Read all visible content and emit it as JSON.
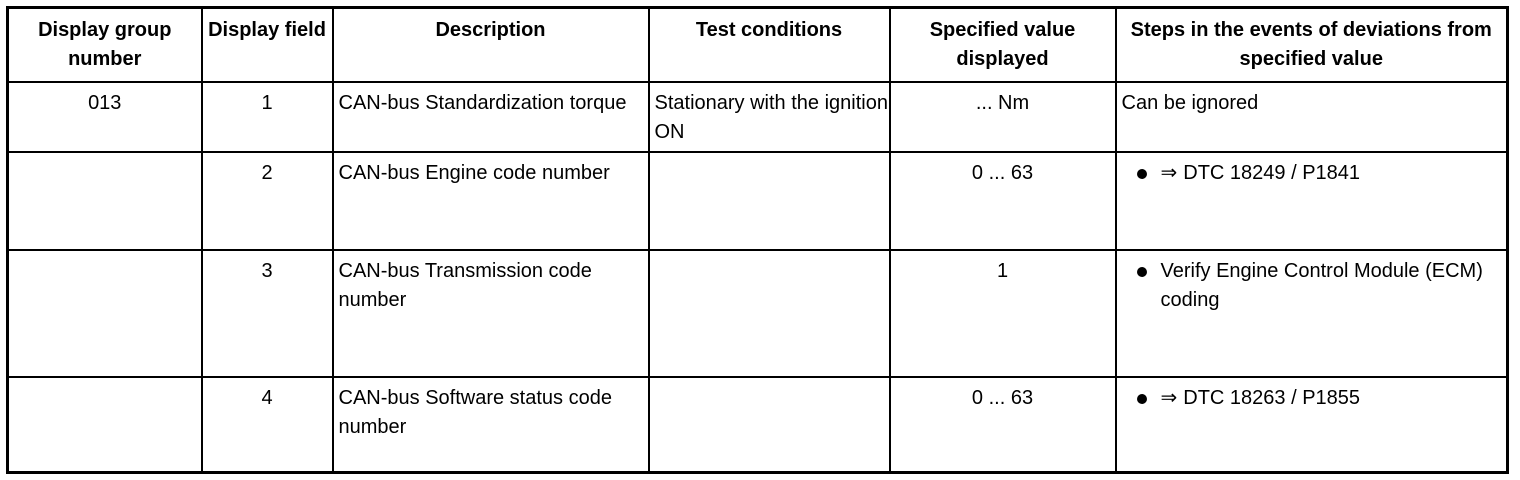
{
  "headers": [
    "Display group number",
    "Display field",
    "Description",
    "Test conditions",
    "Specified value displayed",
    "Steps in the events of deviations from specified value"
  ],
  "rows": [
    {
      "group": "013",
      "field": "1",
      "description": "CAN-bus Standardization torque",
      "conditions": "Stationary with the ignition ON",
      "value": "... Nm",
      "step": {
        "bullet": false,
        "arrow": "",
        "text": "Can be ignored"
      }
    },
    {
      "group": "",
      "field": "2",
      "description": "CAN-bus Engine code number",
      "conditions": "",
      "value": "0 ... 63",
      "step": {
        "bullet": true,
        "arrow": "⇒",
        "text": "DTC 18249 / P1841"
      }
    },
    {
      "group": "",
      "field": "3",
      "description": "CAN-bus Transmission code number",
      "conditions": "",
      "value": "1",
      "step": {
        "bullet": true,
        "arrow": "",
        "text": "Verify Engine Control Module (ECM) coding"
      }
    },
    {
      "group": "",
      "field": "4",
      "description": "CAN-bus Software status code number",
      "conditions": "",
      "value": "0 ... 63",
      "step": {
        "bullet": true,
        "arrow": "⇒",
        "text": "DTC 18263 / P1855"
      }
    }
  ]
}
